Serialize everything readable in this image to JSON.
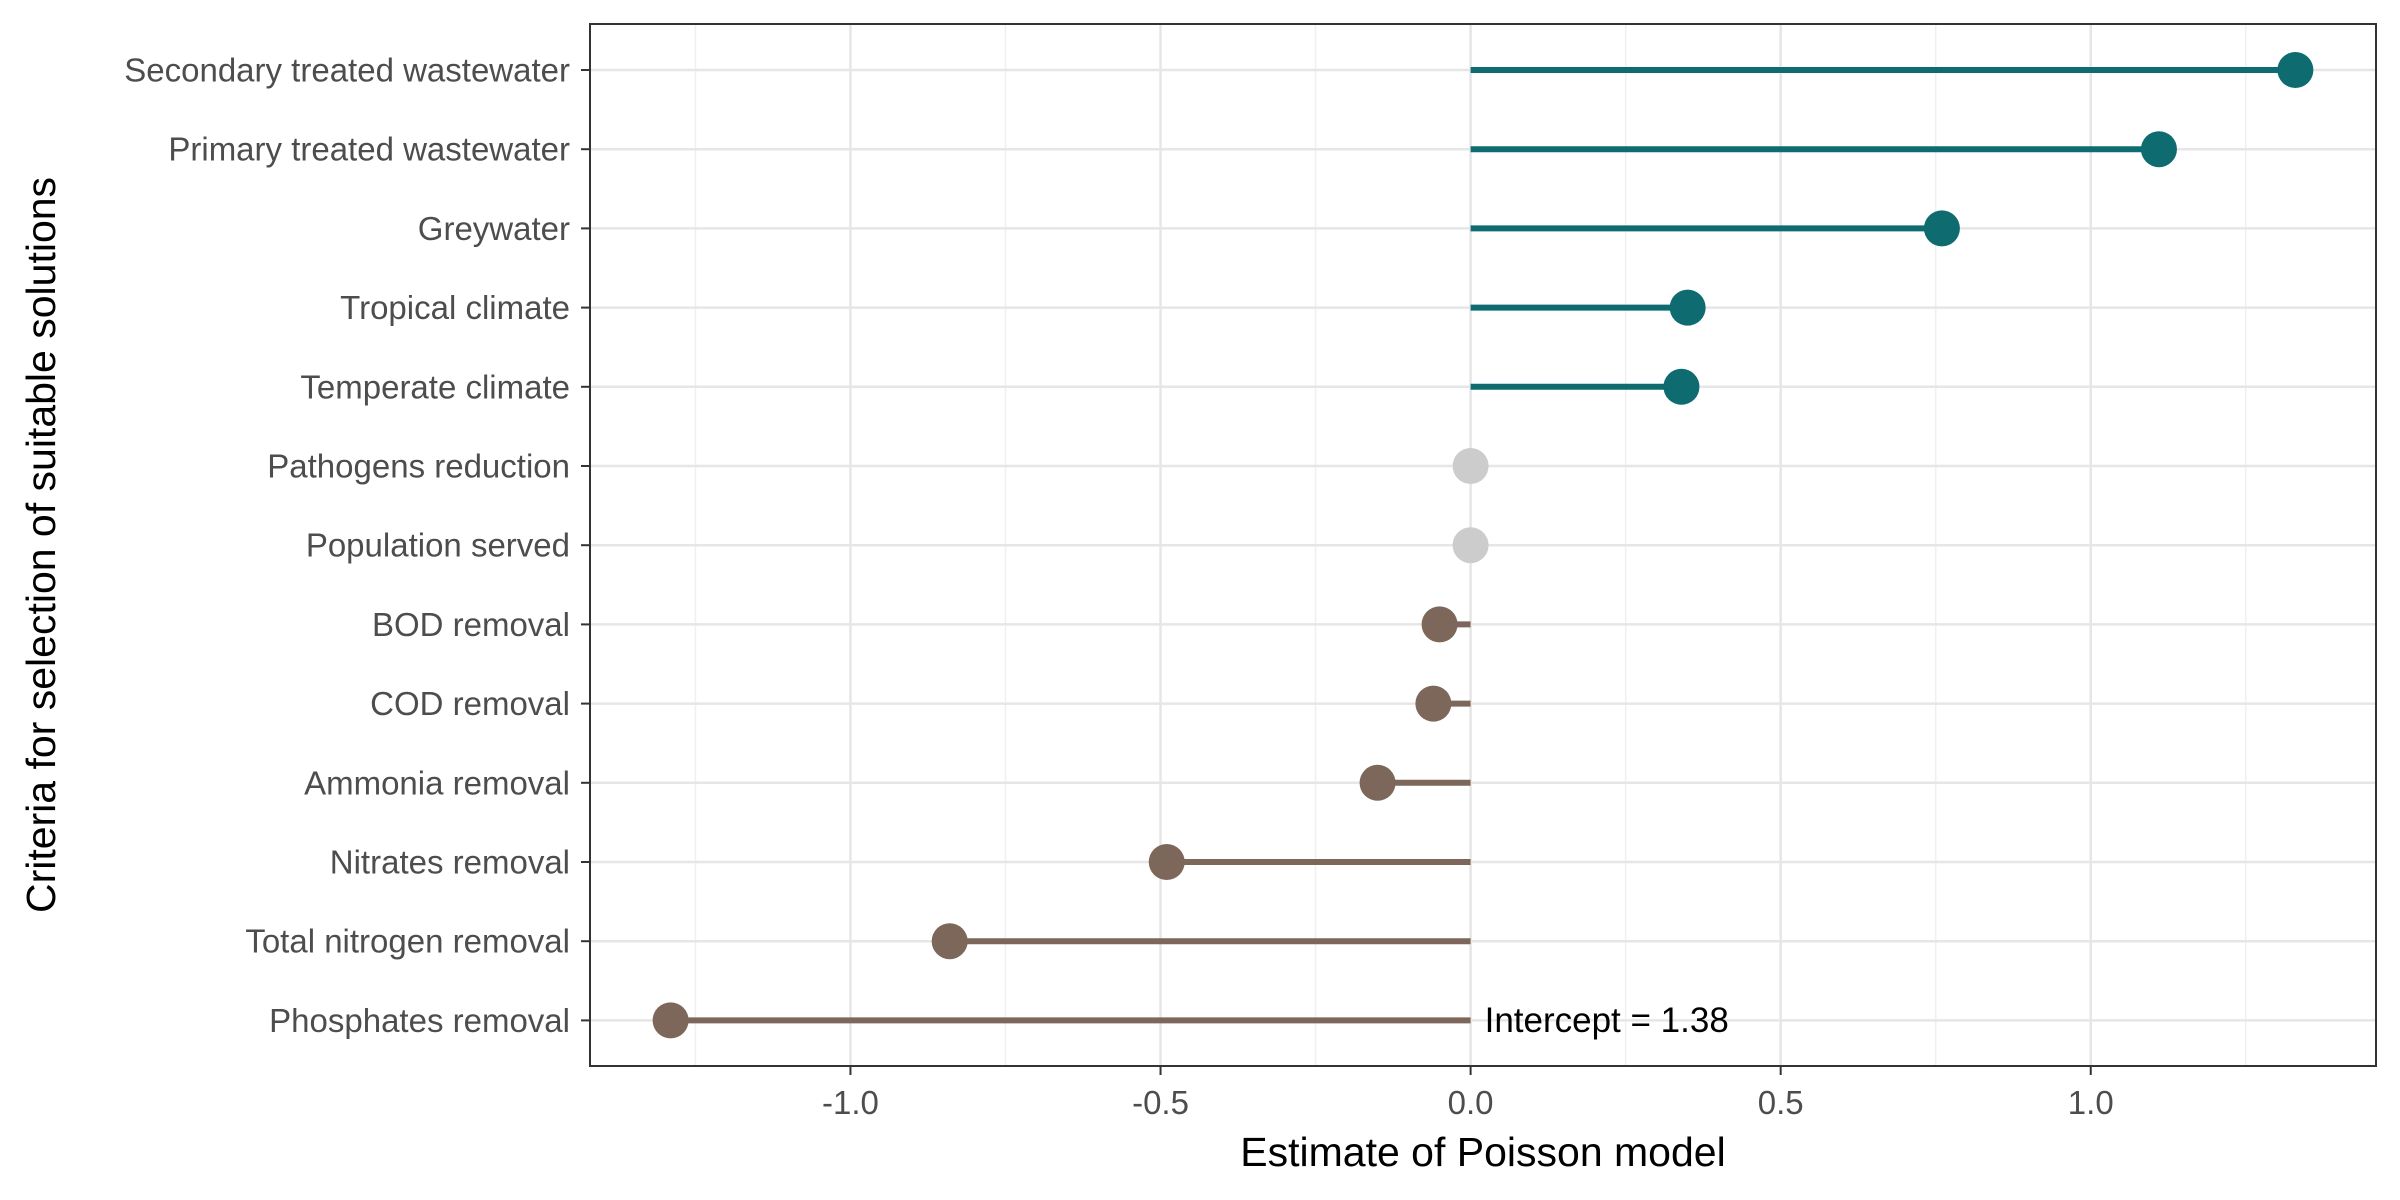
{
  "chart_data": {
    "type": "lollipop",
    "xlabel": "Estimate of Poisson model",
    "ylabel": "Criteria for selection of suitable solutions",
    "xlim": [
      -1.42,
      1.46
    ],
    "x_ticks": [
      -1.0,
      -0.5,
      0.0,
      0.5,
      1.0
    ],
    "x_tick_labels": [
      "-1.0",
      "-0.5",
      "0.0",
      "0.5",
      "1.0"
    ],
    "grid": true,
    "baseline": 0,
    "colors": {
      "positive": "#0e6b70",
      "negative": "#7d675b",
      "zero": "#cccccc"
    },
    "categories": [
      "Secondary treated wastewater",
      "Primary treated wastewater",
      "Greywater",
      "Tropical climate",
      "Temperate climate",
      "Pathogens reduction",
      "Population served",
      "BOD removal",
      "COD removal",
      "Ammonia removal",
      "Nitrates removal",
      "Total nitrogen removal",
      "Phosphates removal"
    ],
    "values": [
      1.33,
      1.11,
      0.76,
      0.35,
      0.34,
      0.0,
      0.0,
      -0.05,
      -0.06,
      -0.15,
      -0.49,
      -0.84,
      -1.29
    ],
    "annotation": "Intercept = 1.38"
  }
}
